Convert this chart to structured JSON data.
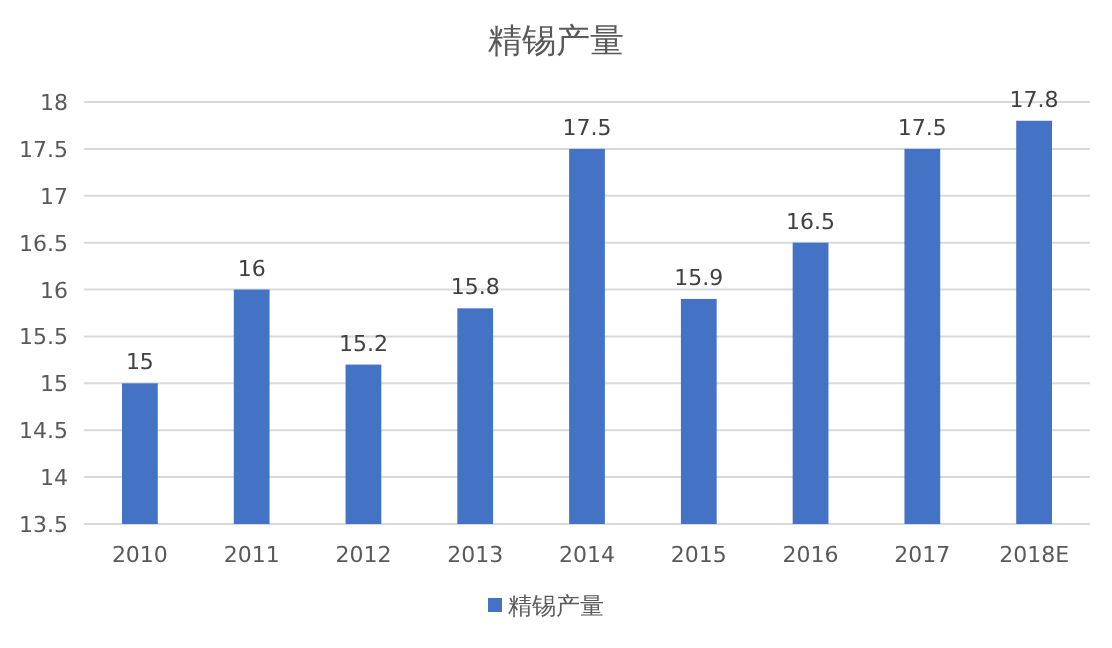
{
  "chart_data": {
    "type": "bar",
    "title": "精锡产量",
    "categories": [
      "2010",
      "2011",
      "2012",
      "2013",
      "2014",
      "2015",
      "2016",
      "2017",
      "2018E"
    ],
    "series": [
      {
        "name": "精锡产量",
        "color": "#4472c4",
        "values": [
          15,
          16,
          15.2,
          15.8,
          17.5,
          15.9,
          16.5,
          17.5,
          17.8
        ]
      }
    ],
    "ylim": [
      13.5,
      18
    ],
    "yticks": [
      13.5,
      14,
      14.5,
      15,
      15.5,
      16,
      16.5,
      17,
      17.5,
      18
    ],
    "grid": "y",
    "legend": "bottom",
    "data_labels": true
  }
}
